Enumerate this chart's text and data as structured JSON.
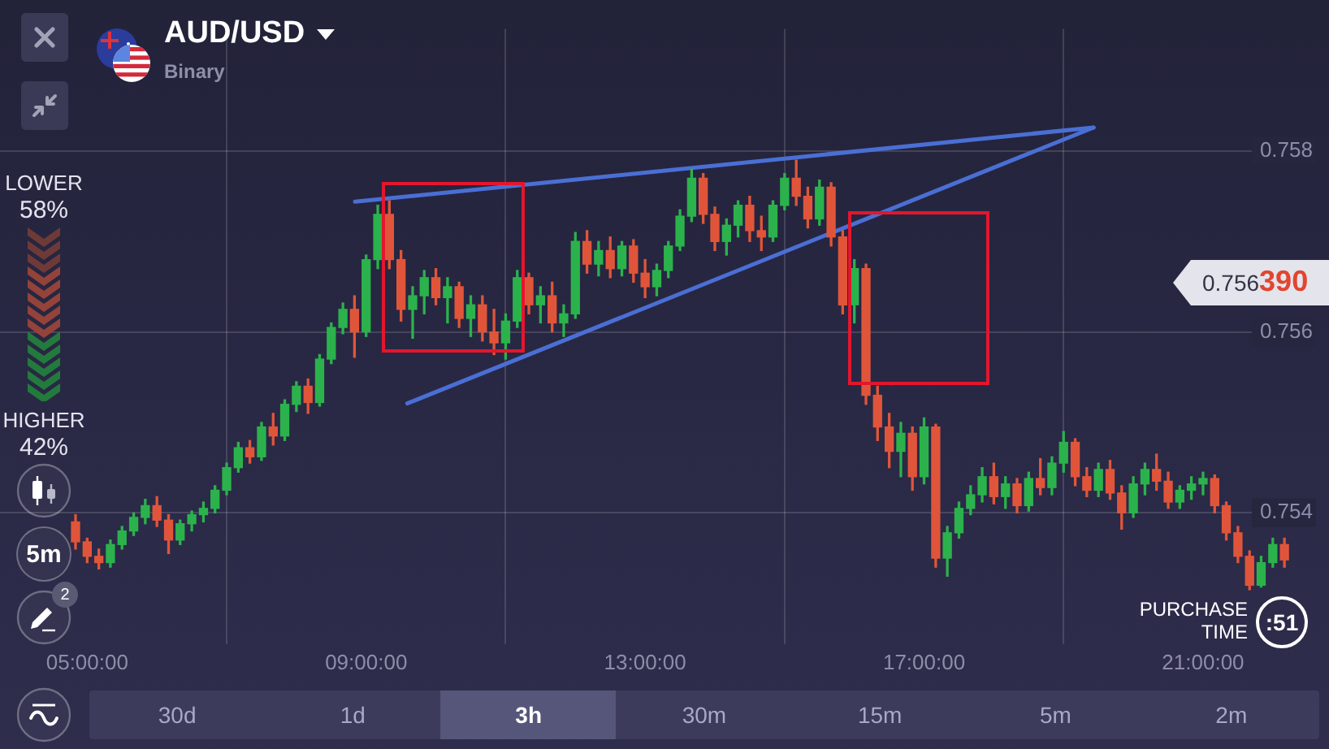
{
  "chart_data": {
    "type": "candlestick",
    "title": "AUD/USD",
    "subtitle": "Binary",
    "x": [
      4.833,
      5,
      5.167,
      5.333,
      5.5,
      5.667,
      5.833,
      6,
      6.167,
      6.333,
      6.5,
      6.667,
      6.833,
      7,
      7.167,
      7.333,
      7.5,
      7.667,
      7.833,
      8,
      8.167,
      8.333,
      8.5,
      8.667,
      8.833,
      9,
      9.167,
      9.333,
      9.5,
      9.667,
      9.833,
      10,
      10.167,
      10.333,
      10.5,
      10.667,
      10.833,
      11,
      11.167,
      11.333,
      11.5,
      11.667,
      11.833,
      12,
      12.167,
      12.333,
      12.5,
      12.667,
      12.833,
      13,
      13.167,
      13.333,
      13.5,
      13.667,
      13.833,
      14,
      14.167,
      14.333,
      14.5,
      14.667,
      14.833,
      15,
      15.167,
      15.333,
      15.5,
      15.667,
      15.833,
      16,
      16.167,
      16.333,
      16.5,
      16.667,
      16.833,
      17,
      17.167,
      17.333,
      17.5,
      17.667,
      17.833,
      18,
      18.167,
      18.333,
      18.5,
      18.667,
      18.833,
      19,
      19.167,
      19.333,
      19.5,
      19.667,
      19.833,
      20,
      20.167,
      20.333,
      20.5,
      20.667,
      20.833,
      21,
      21.167,
      21.333,
      21.5,
      21.667,
      21.833,
      22,
      22.167
    ],
    "ohlc": [
      [
        0.7539,
        0.75398,
        0.7536,
        0.75368
      ],
      [
        0.75368,
        0.75372,
        0.75345,
        0.75352
      ],
      [
        0.75352,
        0.7536,
        0.75338,
        0.75345
      ],
      [
        0.75345,
        0.7537,
        0.7534,
        0.75365
      ],
      [
        0.75365,
        0.75385,
        0.7536,
        0.7538
      ],
      [
        0.7538,
        0.754,
        0.75375,
        0.75395
      ],
      [
        0.75395,
        0.75415,
        0.75388,
        0.75408
      ],
      [
        0.75408,
        0.75418,
        0.75385,
        0.75392
      ],
      [
        0.75392,
        0.75398,
        0.75355,
        0.7537
      ],
      [
        0.7537,
        0.75392,
        0.75365,
        0.75388
      ],
      [
        0.75388,
        0.75402,
        0.7538,
        0.75398
      ],
      [
        0.75398,
        0.75412,
        0.7539,
        0.75405
      ],
      [
        0.75405,
        0.7543,
        0.754,
        0.75425
      ],
      [
        0.75425,
        0.75455,
        0.7542,
        0.7545
      ],
      [
        0.7545,
        0.75478,
        0.75445,
        0.75472
      ],
      [
        0.75472,
        0.7548,
        0.75455,
        0.75462
      ],
      [
        0.75462,
        0.755,
        0.75458,
        0.75495
      ],
      [
        0.75495,
        0.7551,
        0.75475,
        0.75485
      ],
      [
        0.75485,
        0.75525,
        0.7548,
        0.7552
      ],
      [
        0.7552,
        0.75545,
        0.75512,
        0.7554
      ],
      [
        0.7554,
        0.75548,
        0.7551,
        0.75522
      ],
      [
        0.75522,
        0.75575,
        0.75518,
        0.7557
      ],
      [
        0.7557,
        0.7561,
        0.75565,
        0.75605
      ],
      [
        0.75605,
        0.75632,
        0.75598,
        0.75625
      ],
      [
        0.75625,
        0.7564,
        0.75572,
        0.756
      ],
      [
        0.756,
        0.75685,
        0.75595,
        0.7568
      ],
      [
        0.7568,
        0.7574,
        0.7567,
        0.7573
      ],
      [
        0.7573,
        0.75745,
        0.7567,
        0.7568
      ],
      [
        0.7568,
        0.7569,
        0.75612,
        0.75625
      ],
      [
        0.75625,
        0.7565,
        0.75593,
        0.7564
      ],
      [
        0.7564,
        0.75668,
        0.7562,
        0.7566
      ],
      [
        0.7566,
        0.7567,
        0.7563,
        0.75638
      ],
      [
        0.75638,
        0.7566,
        0.7561,
        0.7565
      ],
      [
        0.7565,
        0.75655,
        0.75605,
        0.75615
      ],
      [
        0.75615,
        0.7564,
        0.75595,
        0.7563
      ],
      [
        0.7563,
        0.7564,
        0.7559,
        0.756
      ],
      [
        0.756,
        0.75625,
        0.75575,
        0.75588
      ],
      [
        0.75588,
        0.7562,
        0.7557,
        0.75612
      ],
      [
        0.75612,
        0.75668,
        0.75605,
        0.7566
      ],
      [
        0.7566,
        0.75665,
        0.7562,
        0.7563
      ],
      [
        0.7563,
        0.7565,
        0.7561,
        0.7564
      ],
      [
        0.7564,
        0.75655,
        0.756,
        0.7561
      ],
      [
        0.7561,
        0.7563,
        0.75595,
        0.7562
      ],
      [
        0.7562,
        0.7571,
        0.75615,
        0.757
      ],
      [
        0.757,
        0.75712,
        0.75665,
        0.75675
      ],
      [
        0.75675,
        0.757,
        0.75662,
        0.7569
      ],
      [
        0.7569,
        0.75705,
        0.7566,
        0.7567
      ],
      [
        0.7567,
        0.757,
        0.75662,
        0.75695
      ],
      [
        0.75695,
        0.75702,
        0.75655,
        0.75665
      ],
      [
        0.75665,
        0.7568,
        0.75638,
        0.7565
      ],
      [
        0.7565,
        0.75675,
        0.7564,
        0.75668
      ],
      [
        0.75668,
        0.757,
        0.7566,
        0.75695
      ],
      [
        0.75695,
        0.75735,
        0.7569,
        0.75728
      ],
      [
        0.75728,
        0.7578,
        0.75722,
        0.7577
      ],
      [
        0.7577,
        0.75775,
        0.7572,
        0.7573
      ],
      [
        0.7573,
        0.75738,
        0.7569,
        0.757
      ],
      [
        0.757,
        0.75725,
        0.75685,
        0.75718
      ],
      [
        0.75718,
        0.75745,
        0.75705,
        0.7574
      ],
      [
        0.7574,
        0.7575,
        0.757,
        0.75712
      ],
      [
        0.75712,
        0.75728,
        0.7569,
        0.75705
      ],
      [
        0.75705,
        0.75745,
        0.757,
        0.7574
      ],
      [
        0.7574,
        0.75775,
        0.75735,
        0.7577
      ],
      [
        0.7577,
        0.7579,
        0.7574,
        0.7575
      ],
      [
        0.7575,
        0.7576,
        0.75715,
        0.75725
      ],
      [
        0.75725,
        0.75768,
        0.75718,
        0.7576
      ],
      [
        0.7576,
        0.75765,
        0.75695,
        0.75705
      ],
      [
        0.75705,
        0.75712,
        0.7562,
        0.7563
      ],
      [
        0.7563,
        0.7568,
        0.7561,
        0.7567
      ],
      [
        0.7567,
        0.75675,
        0.7552,
        0.7553
      ],
      [
        0.7553,
        0.7554,
        0.7548,
        0.75495
      ],
      [
        0.75495,
        0.7551,
        0.7545,
        0.75468
      ],
      [
        0.75468,
        0.755,
        0.7544,
        0.75488
      ],
      [
        0.75488,
        0.75495,
        0.75425,
        0.7544
      ],
      [
        0.7544,
        0.75505,
        0.75432,
        0.75495
      ],
      [
        0.75495,
        0.75498,
        0.7534,
        0.7535
      ],
      [
        0.7535,
        0.75385,
        0.7533,
        0.75378
      ],
      [
        0.75378,
        0.75412,
        0.75372,
        0.75405
      ],
      [
        0.75405,
        0.7543,
        0.75398,
        0.7542
      ],
      [
        0.7542,
        0.7545,
        0.75412,
        0.7544
      ],
      [
        0.7544,
        0.75455,
        0.7541,
        0.75418
      ],
      [
        0.75418,
        0.7544,
        0.75405,
        0.75432
      ],
      [
        0.75432,
        0.75438,
        0.754,
        0.75408
      ],
      [
        0.75408,
        0.75445,
        0.75402,
        0.75438
      ],
      [
        0.75438,
        0.7546,
        0.7542,
        0.75428
      ],
      [
        0.75428,
        0.75462,
        0.7542,
        0.75455
      ],
      [
        0.75455,
        0.7549,
        0.75445,
        0.75478
      ],
      [
        0.75478,
        0.75482,
        0.7543,
        0.7544
      ],
      [
        0.7544,
        0.7545,
        0.75418,
        0.75425
      ],
      [
        0.75425,
        0.75455,
        0.75418,
        0.75448
      ],
      [
        0.75448,
        0.75458,
        0.75415,
        0.75422
      ],
      [
        0.75422,
        0.7543,
        0.75382,
        0.754
      ],
      [
        0.754,
        0.7544,
        0.75395,
        0.75432
      ],
      [
        0.75432,
        0.75455,
        0.7542,
        0.75448
      ],
      [
        0.75448,
        0.75465,
        0.75425,
        0.75435
      ],
      [
        0.75435,
        0.75445,
        0.75405,
        0.75412
      ],
      [
        0.75412,
        0.7543,
        0.75405,
        0.75425
      ],
      [
        0.75425,
        0.7544,
        0.75415,
        0.75432
      ],
      [
        0.75432,
        0.75445,
        0.7542,
        0.75438
      ],
      [
        0.75438,
        0.75442,
        0.754,
        0.75408
      ],
      [
        0.75408,
        0.75412,
        0.7537,
        0.75378
      ],
      [
        0.75378,
        0.75385,
        0.75345,
        0.75352
      ],
      [
        0.75352,
        0.75358,
        0.75315,
        0.7532
      ],
      [
        0.7532,
        0.75352,
        0.75318,
        0.75345
      ],
      [
        0.75345,
        0.75372,
        0.7534,
        0.75365
      ],
      [
        0.75365,
        0.75372,
        0.7534,
        0.75348
      ]
    ],
    "colors": [
      "#e0553a",
      "#e0553a",
      "#e0553a",
      "#2bb24c",
      "#2bb24c",
      "#2bb24c",
      "#2bb24c",
      "#e0553a",
      "#e0553a",
      "#2bb24c",
      "#2bb24c",
      "#2bb24c",
      "#2bb24c",
      "#2bb24c",
      "#2bb24c",
      "#e0553a",
      "#2bb24c",
      "#e0553a",
      "#2bb24c",
      "#2bb24c",
      "#e0553a",
      "#2bb24c",
      "#2bb24c",
      "#2bb24c",
      "#e0553a",
      "#2bb24c",
      "#2bb24c",
      "#e0553a",
      "#e0553a",
      "#2bb24c",
      "#2bb24c",
      "#e0553a",
      "#2bb24c",
      "#e0553a",
      "#2bb24c",
      "#e0553a",
      "#e0553a",
      "#2bb24c",
      "#2bb24c",
      "#e0553a",
      "#2bb24c",
      "#e0553a",
      "#2bb24c",
      "#2bb24c",
      "#e0553a",
      "#2bb24c",
      "#e0553a",
      "#2bb24c",
      "#e0553a",
      "#e0553a",
      "#2bb24c",
      "#2bb24c",
      "#2bb24c",
      "#2bb24c",
      "#e0553a",
      "#e0553a",
      "#2bb24c",
      "#2bb24c",
      "#e0553a",
      "#e0553a",
      "#2bb24c",
      "#2bb24c",
      "#e0553a",
      "#e0553a",
      "#2bb24c",
      "#e0553a",
      "#e0553a",
      "#2bb24c",
      "#e0553a",
      "#e0553a",
      "#e0553a",
      "#2bb24c",
      "#e0553a",
      "#2bb24c",
      "#e0553a",
      "#2bb24c",
      "#2bb24c",
      "#2bb24c",
      "#2bb24c",
      "#e0553a",
      "#2bb24c",
      "#e0553a",
      "#2bb24c",
      "#e0553a",
      "#2bb24c",
      "#2bb24c",
      "#e0553a",
      "#e0553a",
      "#2bb24c",
      "#e0553a",
      "#e0553a",
      "#2bb24c",
      "#2bb24c",
      "#e0553a",
      "#e0553a",
      "#2bb24c",
      "#2bb24c",
      "#2bb24c",
      "#e0553a",
      "#e0553a",
      "#e0553a",
      "#e0553a",
      "#2bb24c",
      "#2bb24c",
      "#e0553a"
    ],
    "series": [
      {
        "type": "line",
        "color": "#4a6fd4",
        "x": [
          8.84,
          19.43
        ],
        "values": [
          0.75744,
          0.75826
        ]
      },
      {
        "type": "line",
        "color": "#4a6fd4",
        "x": [
          9.59,
          19.43
        ],
        "values": [
          0.75521,
          0.75826
        ]
      }
    ],
    "xlim": [
      3.75,
      22.34
    ],
    "xticks": [
      {
        "value": 5,
        "label": "05:00:00"
      },
      {
        "value": 9,
        "label": "09:00:00"
      },
      {
        "value": 13,
        "label": "13:00:00"
      },
      {
        "value": 17,
        "label": "17:00:00"
      },
      {
        "value": 21,
        "label": "21:00:00"
      }
    ],
    "ylim": [
      0.75255,
      0.75935
    ],
    "yticks": [
      0.754,
      0.756,
      0.758
    ],
    "grid": true,
    "annotations": [
      "LOWER",
      "58%",
      "HIGHER",
      "42%",
      "5m",
      "2",
      "30d",
      "1d",
      "3h",
      "30m",
      "15m",
      "5m",
      "2m",
      "PURCHASE TIME",
      ":51",
      "0.756390"
    ]
  }
}
